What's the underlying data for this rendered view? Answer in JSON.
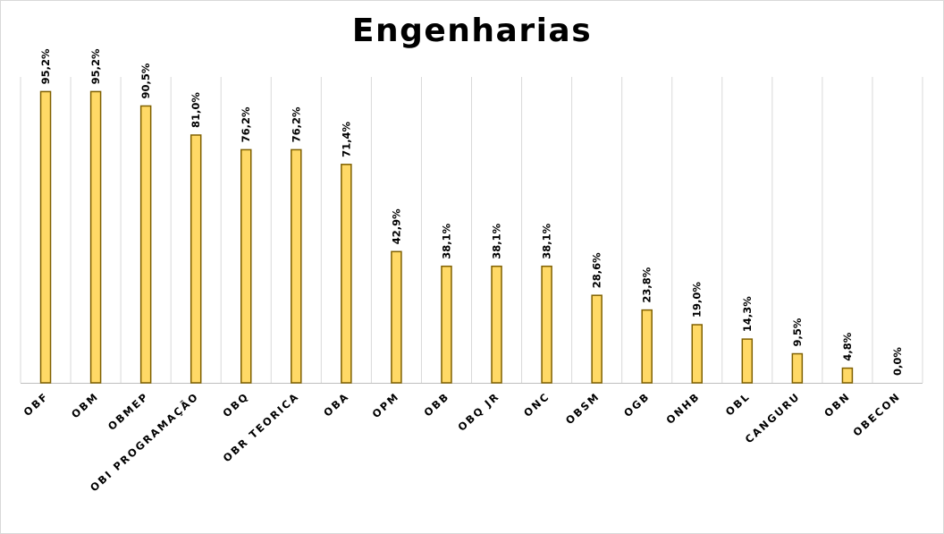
{
  "chart_data": {
    "type": "bar",
    "title": "Engenharias",
    "xlabel": "",
    "ylabel": "",
    "ylim": [
      0,
      100
    ],
    "grid": true,
    "legend": "none",
    "categories": [
      "OBF",
      "OBM",
      "OBMEP",
      "OBI PROGRAMAÇÃO",
      "OBQ",
      "OBR TEORICA",
      "OBA",
      "OPM",
      "OBB",
      "OBQ JR",
      "ONC",
      "OBSM",
      "OGB",
      "ONHB",
      "OBL",
      "CANGURU",
      "OBN",
      "OBECON"
    ],
    "values": [
      95.2,
      95.2,
      90.5,
      81.0,
      76.2,
      76.2,
      71.4,
      42.9,
      38.1,
      38.1,
      38.1,
      28.6,
      23.8,
      19.0,
      14.3,
      9.5,
      4.8,
      0.0
    ],
    "data_labels": [
      "95,2%",
      "95,2%",
      "90,5%",
      "81,0%",
      "76,2%",
      "76,2%",
      "71,4%",
      "42,9%",
      "38,1%",
      "38,1%",
      "38,1%",
      "28,6%",
      "23,8%",
      "19,0%",
      "14,3%",
      "9,5%",
      "4,8%",
      "0,0%"
    ],
    "colors": {
      "bar_fill": "#FFD966",
      "bar_stroke": "#7F6000",
      "grid": "#D9D9D9",
      "axis": "#BFBFBF"
    }
  }
}
